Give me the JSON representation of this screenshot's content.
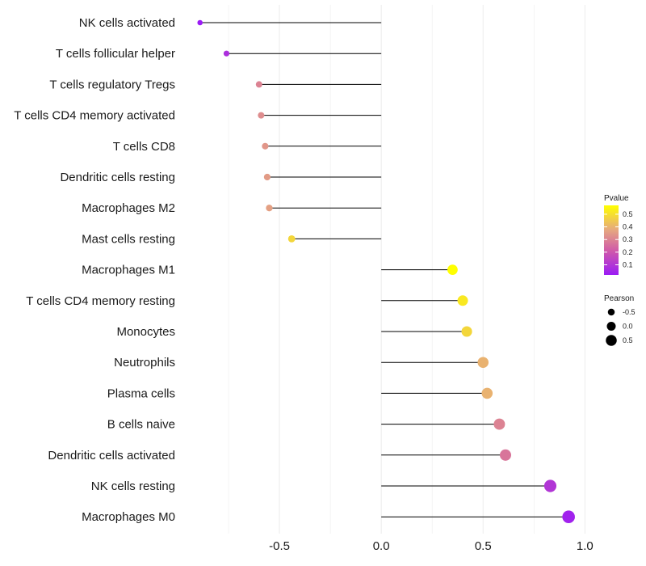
{
  "chart_data": {
    "type": "lollipop",
    "title": "",
    "xlabel": "",
    "ylabel": "",
    "xlim": [
      -0.98,
      1.07
    ],
    "xticks": [
      {
        "value": -0.5,
        "label": "-0.5"
      },
      {
        "value": 0.0,
        "label": "0.0"
      },
      {
        "value": 0.5,
        "label": "0.5"
      },
      {
        "value": 1.0,
        "label": "1.0"
      }
    ],
    "grid": true,
    "categories": [
      "NK cells activated",
      "T cells follicular helper",
      "T cells regulatory  Tregs ",
      "T cells CD4 memory activated",
      "T cells CD8",
      "Dendritic cells resting",
      "Macrophages M2",
      "Mast cells resting",
      "Macrophages M1",
      "T cells CD4 memory resting",
      "Monocytes",
      "Neutrophils",
      "Plasma cells",
      "B cells naive",
      "Dendritic cells activated",
      "NK cells resting",
      "Macrophages M0"
    ],
    "pearson": [
      -0.89,
      -0.76,
      -0.6,
      -0.59,
      -0.57,
      -0.56,
      -0.55,
      -0.44,
      0.35,
      0.4,
      0.42,
      0.5,
      0.52,
      0.58,
      0.61,
      0.83,
      0.92
    ],
    "pvalue": [
      0.02,
      0.08,
      0.3,
      0.32,
      0.34,
      0.35,
      0.36,
      0.48,
      0.57,
      0.52,
      0.48,
      0.4,
      0.4,
      0.3,
      0.27,
      0.1,
      0.04
    ],
    "color_legend": {
      "title": "Pvalue",
      "ticks": [
        {
          "value": 0.5,
          "label": "0.5"
        },
        {
          "value": 0.4,
          "label": "0.4"
        },
        {
          "value": 0.3,
          "label": "0.3"
        },
        {
          "value": 0.2,
          "label": "0.2"
        },
        {
          "value": 0.1,
          "label": "0.1"
        }
      ],
      "range": [
        0.02,
        0.57
      ],
      "colors": [
        "#9b1cf5",
        "#d05aa9",
        "#e6a87f",
        "#ffff00"
      ]
    },
    "size_legend": {
      "title": "Pearson",
      "entries": [
        {
          "value": -0.5,
          "label": "-0.5"
        },
        {
          "value": 0.0,
          "label": "0.0"
        },
        {
          "value": 0.5,
          "label": "0.5"
        }
      ]
    },
    "legend_position": "right"
  }
}
